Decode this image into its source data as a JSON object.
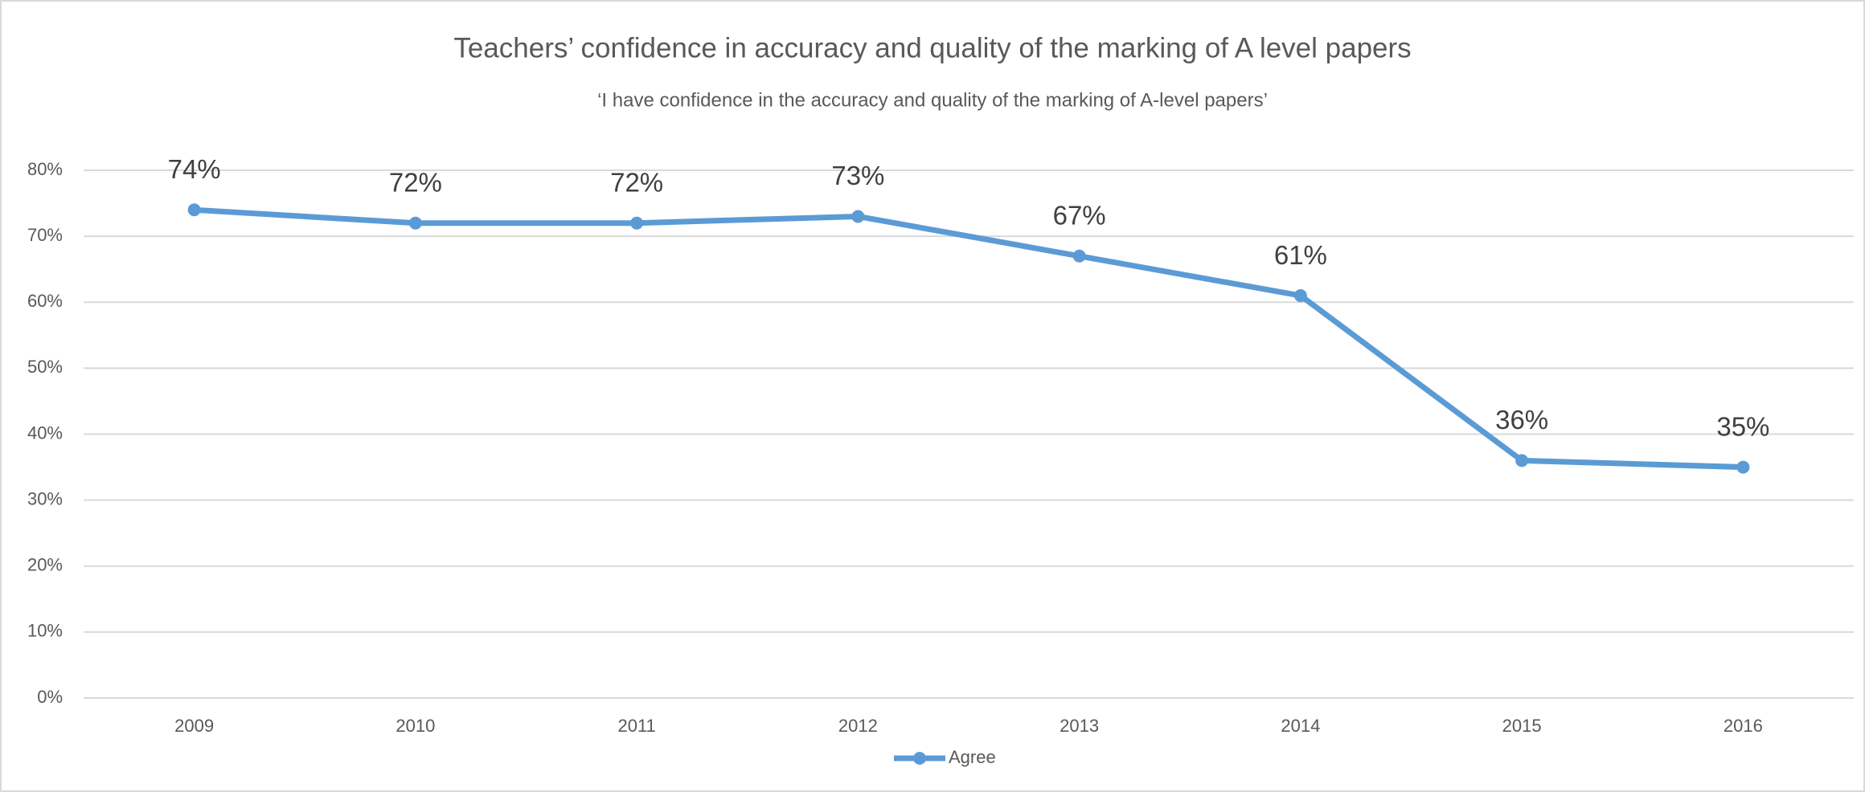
{
  "chart_data": {
    "type": "line",
    "title": "Teachers’ confidence in accuracy and quality of the marking of A level papers",
    "subtitle": "‘I have confidence in the accuracy and quality of the marking of A-level papers’",
    "categories": [
      "2009",
      "2010",
      "2011",
      "2012",
      "2013",
      "2014",
      "2015",
      "2016"
    ],
    "series": [
      {
        "name": "Agree",
        "color": "#5b9bd5",
        "values": [
          74,
          72,
          72,
          73,
          67,
          61,
          36,
          35
        ],
        "value_labels": [
          "74%",
          "72%",
          "72%",
          "73%",
          "67%",
          "61%",
          "36%",
          "35%"
        ]
      }
    ],
    "ylim": [
      0,
      80
    ],
    "yticks": [
      {
        "value": 0,
        "label": "0%"
      },
      {
        "value": 10,
        "label": "10%"
      },
      {
        "value": 20,
        "label": "20%"
      },
      {
        "value": 30,
        "label": "30%"
      },
      {
        "value": 40,
        "label": "40%"
      },
      {
        "value": 50,
        "label": "50%"
      },
      {
        "value": 60,
        "label": "60%"
      },
      {
        "value": 70,
        "label": "70%"
      },
      {
        "value": 80,
        "label": "80%"
      }
    ],
    "grid": true,
    "legend": "bottom"
  }
}
